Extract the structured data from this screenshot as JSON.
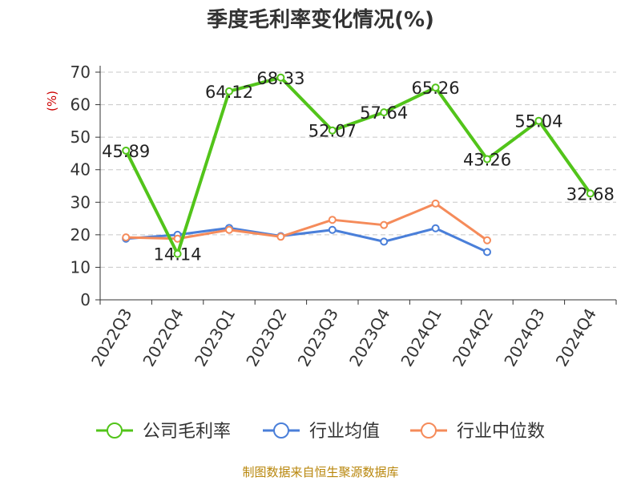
{
  "chart_data": {
    "type": "line",
    "title": "季度毛利率变化情况(%)",
    "ylabel": "(%)",
    "ylim": [
      0,
      70
    ],
    "yticks": [
      0,
      10,
      20,
      30,
      40,
      50,
      60,
      70
    ],
    "grid": true,
    "legend_position": "bottom",
    "categories": [
      "2022Q3",
      "2022Q4",
      "2023Q1",
      "2023Q2",
      "2023Q3",
      "2023Q4",
      "2024Q1",
      "2024Q2",
      "2024Q3",
      "2024Q4"
    ],
    "series": [
      {
        "name": "公司毛利率",
        "color": "#52c41a",
        "values": [
          45.89,
          14.14,
          64.12,
          68.33,
          52.07,
          57.64,
          65.26,
          43.26,
          55.04,
          32.68
        ],
        "labels": [
          "45.89",
          "14.14",
          "64.12",
          "68.33",
          "52.07",
          "57.64",
          "65.26",
          "43.26",
          "55.04",
          "32.68"
        ]
      },
      {
        "name": "行业均值",
        "color": "#4a7fd9",
        "values": [
          18.8,
          20.0,
          22.1,
          19.6,
          21.5,
          17.9,
          22.0,
          14.7,
          null,
          null
        ]
      },
      {
        "name": "行业中位数",
        "color": "#f58b5a",
        "values": [
          19.2,
          18.8,
          21.5,
          19.4,
          24.6,
          23.0,
          29.6,
          18.3,
          null,
          null
        ]
      }
    ]
  },
  "source": "制图数据来自恒生聚源数据库"
}
